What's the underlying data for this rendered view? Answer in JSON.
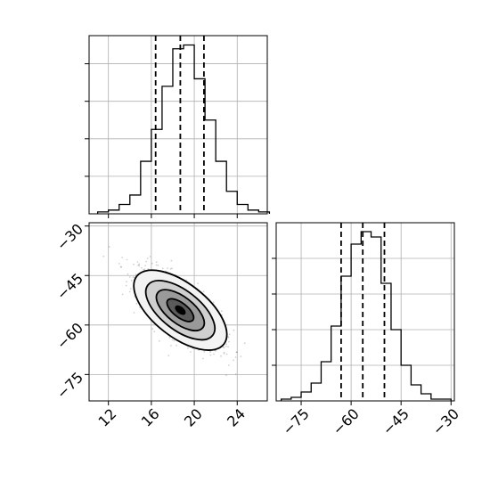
{
  "chart_data": [
    {
      "type": "bar",
      "panel": "histogram-param-1",
      "bin_edges": [
        11,
        12,
        13,
        14,
        15,
        16,
        17,
        18,
        19,
        20,
        21,
        22,
        23,
        24,
        25,
        26,
        27
      ],
      "counts": [
        1,
        2,
        5,
        10,
        28,
        45,
        68,
        88,
        90,
        72,
        50,
        28,
        12,
        5,
        2,
        1
      ],
      "quantiles": [
        16.4,
        18.7,
        20.9
      ],
      "xlim": [
        10.2,
        26.8
      ],
      "ylim": [
        0,
        95
      ],
      "grid": true,
      "xlabel": "",
      "ylabel": ""
    },
    {
      "type": "heatmap",
      "panel": "joint-density",
      "xlim": [
        10.2,
        26.8
      ],
      "ylim": [
        -83,
        -29
      ],
      "xticks": [
        12,
        16,
        20,
        24
      ],
      "yticks": [
        -30,
        -45,
        -60,
        -75
      ],
      "mode": [
        18.7,
        -55.5
      ],
      "grid": true,
      "xlabel": "",
      "ylabel": ""
    },
    {
      "type": "bar",
      "panel": "histogram-param-2",
      "bin_edges": [
        -81,
        -78,
        -75,
        -72,
        -69,
        -66,
        -63,
        -60,
        -57,
        -54,
        -51,
        -48,
        -45,
        -42,
        -39,
        -36,
        -33,
        -30
      ],
      "counts": [
        1,
        2,
        5,
        10,
        22,
        42,
        70,
        88,
        95,
        92,
        66,
        40,
        20,
        9,
        4,
        1,
        1
      ],
      "quantiles": [
        -63,
        -56.5,
        -50
      ],
      "xlim": [
        -82.5,
        -29
      ],
      "ylim": [
        0,
        100
      ],
      "xticks": [
        -75,
        -60,
        -45,
        -30
      ],
      "grid": true,
      "xlabel": "",
      "ylabel": ""
    }
  ]
}
